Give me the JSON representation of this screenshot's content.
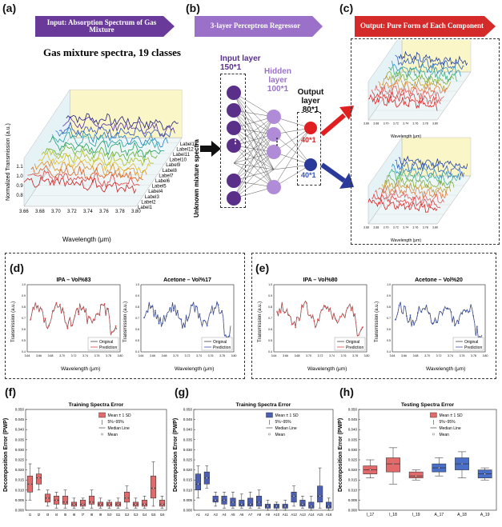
{
  "panels": {
    "a": {
      "label": "(a)",
      "banner": "Input: Absorption Spectrum of Gas Mixture",
      "title": "Gas mixture spectra, 19 classes",
      "ylabel": "Normalized Transmission (a.u.)",
      "xlabel": "Wavelength (μm)",
      "xticks": [
        "3.66",
        "3.68",
        "3.70",
        "3.72",
        "3.74",
        "3.76",
        "3.78",
        "3.80"
      ],
      "yticks": [
        "0.8",
        "0.9",
        "1.0",
        "1.1"
      ],
      "zlabel": "Unknown mixture spectra",
      "series_labels": [
        "Label1",
        "Label2",
        "Label3",
        "Label4",
        "Label5",
        "Label6",
        "Label7",
        "Label8",
        "Label9",
        "Label10",
        "Label11",
        "Label12",
        "Label13"
      ]
    },
    "b": {
      "label": "(b)",
      "banner": "3-layer Perceptron Regressor",
      "input_layer": "Input layer",
      "input_size": "150*1",
      "hidden_layer": "Hidden layer",
      "hidden_size": "100*1",
      "output_layer": "Output layer",
      "output_size": "80*1",
      "out1": "40*1",
      "out2": "40*1",
      "dots": "⋮"
    },
    "c": {
      "label": "(c)",
      "banner": "Output: Pure Form of Each Component",
      "xlabel": "Wavelength (μm)",
      "xticks": [
        "3.66",
        "3.68",
        "3.70",
        "3.72",
        "3.74",
        "3.76",
        "3.78",
        "3.80"
      ],
      "yticks": [
        "0.5",
        "0.6",
        "0.7",
        "0.8",
        "0.9",
        "1.0",
        "1.1",
        "1.2"
      ]
    },
    "d": {
      "label": "(d)",
      "charts": [
        {
          "title": "IPA – Vol%83",
          "color": "#e24a4a"
        },
        {
          "title": "Acetone – Vol%17",
          "color": "#3b55b5"
        }
      ]
    },
    "e": {
      "label": "(e)",
      "charts": [
        {
          "title": "IPA – Vol%80",
          "color": "#e24a4a"
        },
        {
          "title": "Acetone – Vol%20",
          "color": "#3b55b5"
        }
      ]
    },
    "de_common": {
      "ylabel": "Transmission (a.u.)",
      "xlabel": "Wavelength (μm)",
      "xticks": [
        "3.64",
        "3.66",
        "3.68",
        "3.70",
        "3.72",
        "3.74",
        "3.76",
        "3.78",
        "3.80"
      ],
      "yticks": [
        "0.4",
        "0.5",
        "0.6",
        "0.7",
        "0.8",
        "0.9",
        "1.0"
      ],
      "legend_original": "Original",
      "legend_prediction": "Prediction"
    },
    "f": {
      "label": "(f)",
      "title": "Training Spectra Error",
      "color": "#e26a6a"
    },
    "g": {
      "label": "(g)",
      "title": "Training Spectra Error",
      "color": "#4a5fb5"
    },
    "h": {
      "label": "(h)",
      "title": "Testing Spectra Error",
      "color": "#e26a6a",
      "color2": "#4a6fc8"
    },
    "box_common": {
      "ylabel": "Decomposition Error (PWP)",
      "legend": [
        "Mean ± 1 SD",
        "5%~95%",
        "Median Line",
        "Mean"
      ]
    }
  },
  "chart_data": [
    {
      "type": "box",
      "panel": "f",
      "title": "Training Spectra Error",
      "ylabel": "Decomposition Error (PWP)",
      "yticks": [
        "0.000",
        "0.005",
        "0.010",
        "0.015",
        "0.020",
        "0.025",
        "0.030",
        "0.035",
        "0.040",
        "0.045",
        "0.050"
      ],
      "ylim": [
        0,
        0.05
      ],
      "categories": [
        "I1",
        "I2",
        "I3",
        "I4",
        "I5",
        "I6",
        "I7",
        "I8",
        "I9",
        "I10",
        "I11",
        "I12",
        "I13",
        "I14",
        "I15",
        "I16"
      ],
      "q1": [
        0.009,
        0.013,
        0.004,
        0.003,
        0.003,
        0.002,
        0.002,
        0.003,
        0.002,
        0.002,
        0.002,
        0.004,
        0.002,
        0.002,
        0.006,
        0.002
      ],
      "q3": [
        0.017,
        0.018,
        0.008,
        0.007,
        0.007,
        0.004,
        0.005,
        0.007,
        0.004,
        0.004,
        0.004,
        0.009,
        0.004,
        0.005,
        0.017,
        0.005
      ],
      "med": [
        0.013,
        0.016,
        0.006,
        0.005,
        0.004,
        0.003,
        0.003,
        0.004,
        0.003,
        0.003,
        0.003,
        0.006,
        0.003,
        0.003,
        0.011,
        0.003
      ],
      "lo": [
        0.005,
        0.01,
        0.002,
        0.001,
        0.001,
        0.001,
        0.001,
        0.001,
        0.001,
        0.001,
        0.001,
        0.001,
        0.001,
        0.001,
        0.002,
        0.001
      ],
      "hi": [
        0.023,
        0.021,
        0.01,
        0.009,
        0.01,
        0.006,
        0.006,
        0.01,
        0.006,
        0.005,
        0.006,
        0.012,
        0.006,
        0.007,
        0.024,
        0.007
      ]
    },
    {
      "type": "box",
      "panel": "g",
      "title": "Training Spectra Error",
      "ylabel": "Decomposition Error (PWP)",
      "yticks": [
        "0.000",
        "0.005",
        "0.010",
        "0.015",
        "0.020",
        "0.025",
        "0.030",
        "0.035",
        "0.040",
        "0.045",
        "0.050"
      ],
      "ylim": [
        0,
        0.05
      ],
      "categories": [
        "A1",
        "A2",
        "A3",
        "A4",
        "A5",
        "A6",
        "A7",
        "A8",
        "A9",
        "A10",
        "A11",
        "A12",
        "A13",
        "A14",
        "A15",
        "A16"
      ],
      "q1": [
        0.01,
        0.013,
        0.004,
        0.003,
        0.002,
        0.002,
        0.002,
        0.002,
        0.001,
        0.001,
        0.001,
        0.004,
        0.002,
        0.001,
        0.004,
        0.001
      ],
      "q3": [
        0.018,
        0.019,
        0.007,
        0.007,
        0.006,
        0.005,
        0.006,
        0.007,
        0.003,
        0.003,
        0.003,
        0.009,
        0.005,
        0.004,
        0.012,
        0.004
      ],
      "med": [
        0.013,
        0.016,
        0.005,
        0.005,
        0.004,
        0.003,
        0.003,
        0.004,
        0.002,
        0.002,
        0.002,
        0.007,
        0.003,
        0.002,
        0.007,
        0.002
      ],
      "lo": [
        0.006,
        0.011,
        0.002,
        0.001,
        0.001,
        0.001,
        0.001,
        0.001,
        0.0,
        0.0,
        0.0,
        0.002,
        0.001,
        0.0,
        0.001,
        0.0
      ],
      "hi": [
        0.022,
        0.022,
        0.009,
        0.009,
        0.009,
        0.008,
        0.009,
        0.01,
        0.005,
        0.004,
        0.005,
        0.012,
        0.007,
        0.007,
        0.021,
        0.006
      ]
    },
    {
      "type": "box",
      "panel": "h",
      "title": "Testing Spectra Error",
      "ylabel": "Decomposition Error (PWP)",
      "yticks": [
        "0.000",
        "0.005",
        "0.010",
        "0.015",
        "0.020",
        "0.025",
        "0.030",
        "0.035",
        "0.040",
        "0.045",
        "0.050"
      ],
      "ylim": [
        0,
        0.05
      ],
      "categories": [
        "I_17",
        "I_18",
        "I_19",
        "A_17",
        "A_18",
        "A_19"
      ],
      "q1": [
        0.018,
        0.019,
        0.016,
        0.019,
        0.02,
        0.016
      ],
      "q3": [
        0.022,
        0.026,
        0.019,
        0.023,
        0.026,
        0.02
      ],
      "med": [
        0.02,
        0.023,
        0.017,
        0.021,
        0.023,
        0.018
      ],
      "lo": [
        0.016,
        0.013,
        0.015,
        0.017,
        0.016,
        0.015
      ],
      "hi": [
        0.025,
        0.031,
        0.02,
        0.026,
        0.029,
        0.021
      ]
    }
  ]
}
